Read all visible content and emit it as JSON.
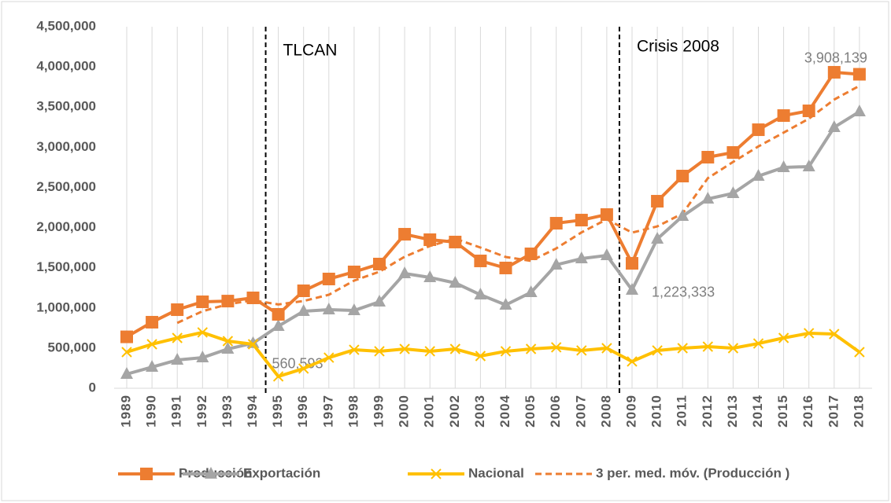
{
  "chart_data": {
    "type": "line",
    "categories": [
      "1989",
      "1990",
      "1991",
      "1992",
      "1993",
      "1994",
      "1995",
      "1996",
      "1997",
      "1998",
      "1999",
      "2000",
      "2001",
      "2002",
      "2003",
      "2004",
      "2005",
      "2006",
      "2007",
      "2008",
      "2009",
      "2010",
      "2011",
      "2012",
      "2013",
      "2014",
      "2015",
      "2016",
      "2017",
      "2018"
    ],
    "series": [
      {
        "name": "Producción",
        "color": "#ED7D31",
        "marker": "square",
        "values": [
          640000,
          822000,
          978000,
          1076000,
          1085000,
          1125000,
          920000,
          1213000,
          1360000,
          1448000,
          1546000,
          1917000,
          1849000,
          1820000,
          1585000,
          1497000,
          1673000,
          2054000,
          2093000,
          2162000,
          1555000,
          2328000,
          2641000,
          2876000,
          2935000,
          3218000,
          3394000,
          3453000,
          3933000,
          3908139
        ],
        "value_labels": [
          null,
          null,
          null,
          null,
          null,
          null,
          null,
          null,
          null,
          null,
          null,
          null,
          null,
          null,
          null,
          null,
          null,
          null,
          null,
          null,
          null,
          null,
          null,
          null,
          null,
          null,
          null,
          null,
          null,
          "3,908,139"
        ]
      },
      {
        "name": "Exportación",
        "color": "#A5A5A5",
        "marker": "triangle",
        "values": [
          176000,
          264000,
          352000,
          381000,
          489000,
          560593,
          773000,
          959000,
          978000,
          968000,
          1076000,
          1428000,
          1379000,
          1311000,
          1164000,
          1037000,
          1193000,
          1536000,
          1614000,
          1653000,
          1223333,
          1859000,
          2142000,
          2357000,
          2426000,
          2641000,
          2749000,
          2759000,
          3248000,
          3443000
        ],
        "value_labels": [
          null,
          null,
          null,
          null,
          null,
          "560,593",
          null,
          null,
          null,
          null,
          null,
          null,
          null,
          null,
          null,
          null,
          null,
          null,
          null,
          null,
          "1,223,333",
          null,
          null,
          null,
          null,
          null,
          null,
          null,
          null,
          null
        ]
      },
      {
        "name": "Nacional",
        "color": "#FFC000",
        "marker": "x",
        "values": [
          450000,
          548000,
          626000,
          695000,
          587000,
          548000,
          147000,
          245000,
          381000,
          479000,
          460000,
          489000,
          460000,
          489000,
          401000,
          460000,
          489000,
          509000,
          470000,
          499000,
          333000,
          470000,
          499000,
          518000,
          499000,
          557000,
          626000,
          685000,
          675000,
          450000
        ]
      },
      {
        "name": "3 per. med. móv. (Producción )",
        "color": "#ED7D31",
        "dashed": true,
        "values": [
          null,
          null,
          813000,
          959000,
          1046000,
          1095000,
          1043000,
          1086000,
          1164000,
          1340000,
          1451000,
          1637000,
          1771000,
          1862000,
          1751000,
          1634000,
          1585000,
          1741000,
          1940000,
          2103000,
          1937000,
          2015000,
          2175000,
          2615000,
          2817000,
          3010000,
          3182000,
          3355000,
          3593000,
          3765000
        ]
      }
    ],
    "ylim": [
      0,
      4500000
    ],
    "yticks": [
      0,
      {
        "value": 500000,
        "label": "500,000"
      },
      {
        "value": 1000000,
        "label": "1,000,000"
      },
      {
        "value": 1500000,
        "label": "1,500,000"
      },
      {
        "value": 2000000,
        "label": "2,000,000"
      },
      {
        "value": 2500000,
        "label": "2,500,000"
      },
      {
        "value": 3000000,
        "label": "3,000,000"
      },
      {
        "value": 3500000,
        "label": "3,500,000"
      },
      {
        "value": 4000000,
        "label": "4,000,000"
      },
      {
        "value": 4500000,
        "label": "4,500,000"
      }
    ],
    "annotations": [
      {
        "text": "TLCAN",
        "between": [
          "1994",
          "1995"
        ]
      },
      {
        "text": "Crisis 2008",
        "between": [
          "2008",
          "2009"
        ]
      }
    ],
    "legend": "bottom",
    "grid": "vertical"
  }
}
